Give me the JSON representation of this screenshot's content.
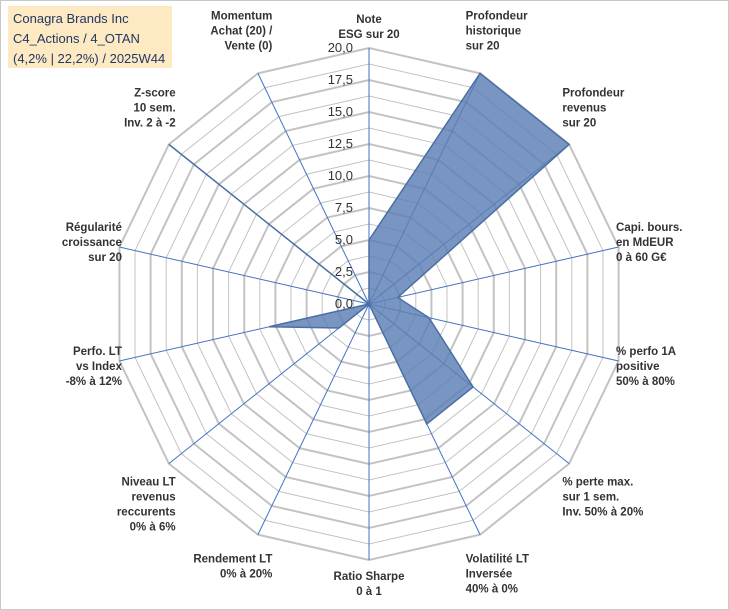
{
  "title_lines": [
    "Conagra Brands Inc",
    "C4_Actions / 4_OTAN",
    "(4,2% | 22,2%) / 2025W44"
  ],
  "colors": {
    "grid": "#c3c3c3",
    "spoke": "#4472c4",
    "fill": "#5b7fb5",
    "stroke": "#4a6fa5",
    "title_bg": "#fde9c2",
    "title_text": "#1f3864"
  },
  "chart_data": {
    "type": "radar",
    "rmax": 20,
    "ticks": [
      "0,0",
      "2,5",
      "5,0",
      "7,5",
      "10,0",
      "12,5",
      "15,0",
      "17,5",
      "20,0"
    ],
    "tick_values": [
      0,
      2.5,
      5,
      7.5,
      10,
      12.5,
      15,
      17.5,
      20
    ],
    "grid_rings": 16,
    "axes": [
      {
        "label": [
          "Note",
          "ESG sur 20"
        ],
        "value": 5.0
      },
      {
        "label": [
          "Profondeur",
          "historique",
          "sur 20"
        ],
        "value": 20.0
      },
      {
        "label": [
          "Profondeur",
          "revenus",
          "sur 20"
        ],
        "value": 20.0
      },
      {
        "label": [
          "Capi. bours.",
          "en MdEUR",
          "0 à 60 G€"
        ],
        "value": 2.3
      },
      {
        "label": [
          "% perfo 1A",
          "positive",
          "50% à 80%"
        ],
        "value": 4.8
      },
      {
        "label": [
          "% perte max.",
          "sur 1 sem.",
          "Inv. 50% à 20%"
        ],
        "value": 10.4
      },
      {
        "label": [
          "Volatilité LT",
          "Inversée",
          "40% à 0%"
        ],
        "value": 10.4
      },
      {
        "label": [
          "Ratio Sharpe",
          "0 à 1"
        ],
        "value": 0.0
      },
      {
        "label": [
          "Rendement LT",
          "0% à 20%"
        ],
        "value": 0.0
      },
      {
        "label": [
          "Niveau LT",
          "revenus",
          "reccurents",
          "0% à 6%"
        ],
        "value": 3.0
      },
      {
        "label": [
          "Perfo. LT",
          "vs Index",
          "-8% à 12%"
        ],
        "value": 8.0
      },
      {
        "label": [
          "Régularité",
          "croissance",
          "sur 20"
        ],
        "value": 0.0
      },
      {
        "label": [
          "Z-score",
          "10 sem.",
          "Inv. 2 à -2"
        ],
        "value": 20.0
      },
      {
        "label": [
          "Momentum",
          "Achat (20) /",
          "Vente (0)"
        ],
        "value": 0.0
      }
    ]
  }
}
